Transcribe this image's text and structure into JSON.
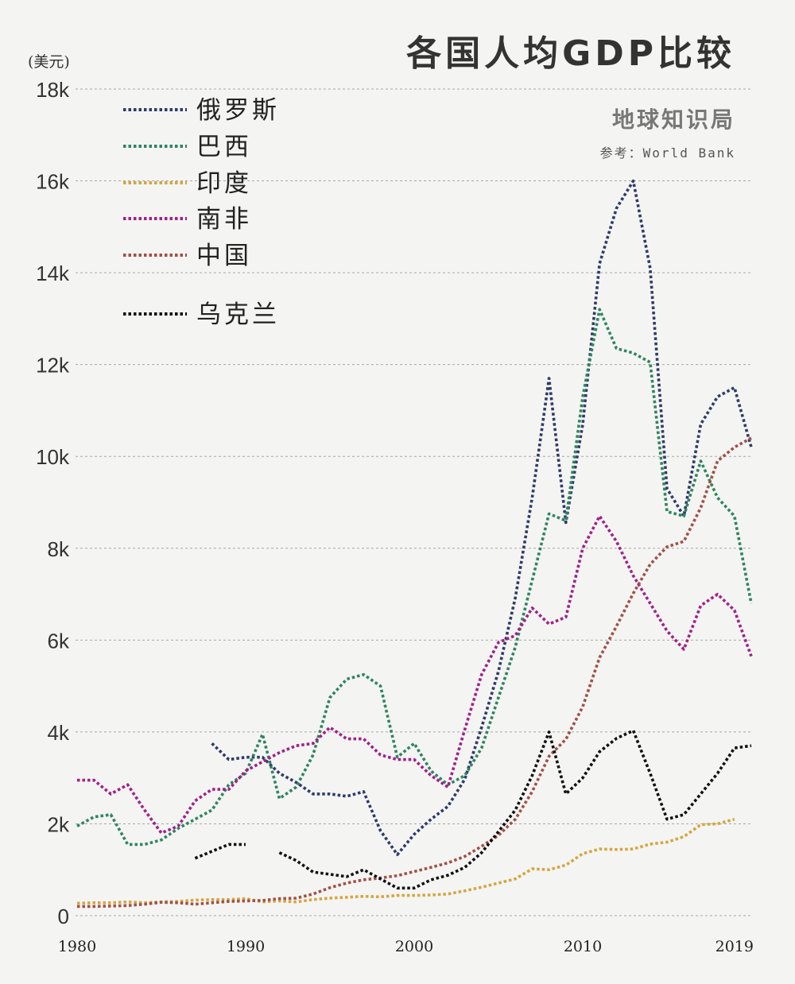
{
  "header": {
    "title": "各国人均GDP比较",
    "unit_label": "(美元)",
    "brand": "地球知识局",
    "source": "参考：World Bank"
  },
  "chart_data": {
    "type": "line",
    "title": "各国人均GDP比较",
    "ylabel": "(美元)",
    "xlabel": "",
    "xlim": [
      1980,
      2019
    ],
    "ylim": [
      0,
      18000
    ],
    "grid": true,
    "legend_position": "top-left",
    "x_ticks": [
      1980,
      1990,
      2000,
      2010,
      2019
    ],
    "x_tick_labels": [
      "1980",
      "1990",
      "2000",
      "2010",
      "2019"
    ],
    "y_ticks": [
      0,
      2000,
      4000,
      6000,
      8000,
      10000,
      12000,
      14000,
      16000,
      18000
    ],
    "y_tick_labels": [
      "0",
      "2k",
      "4k",
      "6k",
      "8k",
      "10k",
      "12k",
      "14k",
      "16k",
      "18k"
    ],
    "series": [
      {
        "name": "俄罗斯",
        "color": "#2f3a6b",
        "points": [
          [
            1988,
            3750
          ],
          [
            1989,
            3400
          ],
          [
            1990,
            3450
          ],
          [
            1991,
            3450
          ],
          [
            1992,
            3100
          ],
          [
            1993,
            2900
          ],
          [
            1994,
            2650
          ],
          [
            1995,
            2650
          ],
          [
            1996,
            2600
          ],
          [
            1997,
            2700
          ],
          [
            1998,
            1850
          ],
          [
            1999,
            1330
          ],
          [
            2000,
            1770
          ],
          [
            2001,
            2100
          ],
          [
            2002,
            2380
          ],
          [
            2003,
            2970
          ],
          [
            2004,
            4100
          ],
          [
            2005,
            5320
          ],
          [
            2006,
            6920
          ],
          [
            2007,
            9100
          ],
          [
            2008,
            11700
          ],
          [
            2009,
            8560
          ],
          [
            2010,
            10700
          ],
          [
            2011,
            14200
          ],
          [
            2012,
            15400
          ],
          [
            2013,
            16000
          ],
          [
            2014,
            14100
          ],
          [
            2015,
            9300
          ],
          [
            2016,
            8700
          ],
          [
            2017,
            10700
          ],
          [
            2018,
            11300
          ],
          [
            2019,
            11500
          ],
          [
            2020,
            10200
          ]
        ]
      },
      {
        "name": "巴西",
        "color": "#2e8560",
        "points": [
          [
            1980,
            1950
          ],
          [
            1981,
            2150
          ],
          [
            1982,
            2200
          ],
          [
            1983,
            1550
          ],
          [
            1984,
            1550
          ],
          [
            1985,
            1650
          ],
          [
            1986,
            1900
          ],
          [
            1987,
            2100
          ],
          [
            1988,
            2300
          ],
          [
            1989,
            2850
          ],
          [
            1990,
            3100
          ],
          [
            1991,
            3950
          ],
          [
            1992,
            2550
          ],
          [
            1993,
            2800
          ],
          [
            1994,
            3500
          ],
          [
            1995,
            4750
          ],
          [
            1996,
            5150
          ],
          [
            1997,
            5250
          ],
          [
            1998,
            5000
          ],
          [
            1999,
            3450
          ],
          [
            2000,
            3750
          ],
          [
            2001,
            3150
          ],
          [
            2002,
            2850
          ],
          [
            2003,
            3050
          ],
          [
            2004,
            3650
          ],
          [
            2005,
            4750
          ],
          [
            2006,
            5850
          ],
          [
            2007,
            7300
          ],
          [
            2008,
            8750
          ],
          [
            2009,
            8600
          ],
          [
            2010,
            11300
          ],
          [
            2011,
            13200
          ],
          [
            2012,
            12350
          ],
          [
            2013,
            12250
          ],
          [
            2014,
            12050
          ],
          [
            2015,
            8800
          ],
          [
            2016,
            8700
          ],
          [
            2017,
            9900
          ],
          [
            2018,
            9100
          ],
          [
            2019,
            8700
          ],
          [
            2020,
            6800
          ]
        ]
      },
      {
        "name": "印度",
        "color": "#d4a640",
        "points": [
          [
            1980,
            270
          ],
          [
            1981,
            280
          ],
          [
            1982,
            280
          ],
          [
            1983,
            300
          ],
          [
            1984,
            280
          ],
          [
            1985,
            300
          ],
          [
            1986,
            310
          ],
          [
            1987,
            340
          ],
          [
            1988,
            350
          ],
          [
            1989,
            350
          ],
          [
            1990,
            370
          ],
          [
            1991,
            300
          ],
          [
            1992,
            320
          ],
          [
            1993,
            300
          ],
          [
            1994,
            350
          ],
          [
            1995,
            380
          ],
          [
            1996,
            400
          ],
          [
            1997,
            420
          ],
          [
            1998,
            410
          ],
          [
            1999,
            440
          ],
          [
            2000,
            440
          ],
          [
            2001,
            450
          ],
          [
            2002,
            470
          ],
          [
            2003,
            540
          ],
          [
            2004,
            620
          ],
          [
            2005,
            710
          ],
          [
            2006,
            800
          ],
          [
            2007,
            1020
          ],
          [
            2008,
            1000
          ],
          [
            2009,
            1100
          ],
          [
            2010,
            1350
          ],
          [
            2011,
            1450
          ],
          [
            2012,
            1440
          ],
          [
            2013,
            1450
          ],
          [
            2014,
            1560
          ],
          [
            2015,
            1600
          ],
          [
            2016,
            1720
          ],
          [
            2017,
            1980
          ],
          [
            2018,
            2000
          ],
          [
            2019,
            2100
          ]
        ]
      },
      {
        "name": "南非",
        "color": "#a0208a",
        "points": [
          [
            1980,
            2950
          ],
          [
            1981,
            2950
          ],
          [
            1982,
            2650
          ],
          [
            1983,
            2850
          ],
          [
            1984,
            2300
          ],
          [
            1985,
            1800
          ],
          [
            1986,
            1950
          ],
          [
            1987,
            2500
          ],
          [
            1988,
            2750
          ],
          [
            1989,
            2750
          ],
          [
            1990,
            3150
          ],
          [
            1991,
            3350
          ],
          [
            1992,
            3550
          ],
          [
            1993,
            3700
          ],
          [
            1994,
            3750
          ],
          [
            1995,
            4100
          ],
          [
            1996,
            3850
          ],
          [
            1997,
            3850
          ],
          [
            1998,
            3500
          ],
          [
            1999,
            3400
          ],
          [
            2000,
            3400
          ],
          [
            2001,
            3050
          ],
          [
            2002,
            2800
          ],
          [
            2003,
            4050
          ],
          [
            2004,
            5250
          ],
          [
            2005,
            5950
          ],
          [
            2006,
            6100
          ],
          [
            2007,
            6700
          ],
          [
            2008,
            6350
          ],
          [
            2009,
            6500
          ],
          [
            2010,
            8000
          ],
          [
            2011,
            8700
          ],
          [
            2012,
            8150
          ],
          [
            2013,
            7400
          ],
          [
            2014,
            6800
          ],
          [
            2015,
            6200
          ],
          [
            2016,
            5800
          ],
          [
            2017,
            6750
          ],
          [
            2018,
            7000
          ],
          [
            2019,
            6650
          ],
          [
            2020,
            5650
          ]
        ]
      },
      {
        "name": "中国",
        "color": "#a05048",
        "points": [
          [
            1980,
            200
          ],
          [
            1981,
            200
          ],
          [
            1982,
            210
          ],
          [
            1983,
            220
          ],
          [
            1984,
            250
          ],
          [
            1985,
            290
          ],
          [
            1986,
            280
          ],
          [
            1987,
            250
          ],
          [
            1988,
            280
          ],
          [
            1989,
            310
          ],
          [
            1990,
            320
          ],
          [
            1991,
            330
          ],
          [
            1992,
            370
          ],
          [
            1993,
            380
          ],
          [
            1994,
            470
          ],
          [
            1995,
            610
          ],
          [
            1996,
            710
          ],
          [
            1997,
            780
          ],
          [
            1998,
            820
          ],
          [
            1999,
            870
          ],
          [
            2000,
            960
          ],
          [
            2001,
            1050
          ],
          [
            2002,
            1150
          ],
          [
            2003,
            1290
          ],
          [
            2004,
            1510
          ],
          [
            2005,
            1750
          ],
          [
            2006,
            2100
          ],
          [
            2007,
            2700
          ],
          [
            2008,
            3470
          ],
          [
            2009,
            3840
          ],
          [
            2010,
            4550
          ],
          [
            2011,
            5620
          ],
          [
            2012,
            6300
          ],
          [
            2013,
            7020
          ],
          [
            2014,
            7650
          ],
          [
            2015,
            8030
          ],
          [
            2016,
            8150
          ],
          [
            2017,
            8880
          ],
          [
            2018,
            9900
          ],
          [
            2019,
            10200
          ],
          [
            2020,
            10400
          ]
        ]
      },
      {
        "name": "乌克兰",
        "color": "#111111",
        "segments": [
          [
            [
              1987,
              1250
            ],
            [
              1988,
              1400
            ],
            [
              1989,
              1550
            ],
            [
              1990,
              1550
            ]
          ],
          [
            [
              1992,
              1370
            ],
            [
              1993,
              1200
            ],
            [
              1994,
              950
            ],
            [
              1995,
              900
            ],
            [
              1996,
              850
            ],
            [
              1997,
              1000
            ],
            [
              1998,
              800
            ],
            [
              1999,
              600
            ],
            [
              2000,
              600
            ],
            [
              2001,
              780
            ],
            [
              2002,
              880
            ],
            [
              2003,
              1050
            ],
            [
              2004,
              1370
            ],
            [
              2005,
              1830
            ],
            [
              2006,
              2300
            ],
            [
              2007,
              3050
            ],
            [
              2008,
              4000
            ],
            [
              2009,
              2650
            ],
            [
              2010,
              3000
            ],
            [
              2011,
              3570
            ],
            [
              2012,
              3860
            ],
            [
              2013,
              4030
            ],
            [
              2014,
              3100
            ],
            [
              2015,
              2100
            ],
            [
              2016,
              2200
            ],
            [
              2017,
              2650
            ],
            [
              2018,
              3100
            ],
            [
              2019,
              3650
            ],
            [
              2020,
              3700
            ]
          ]
        ]
      }
    ]
  }
}
